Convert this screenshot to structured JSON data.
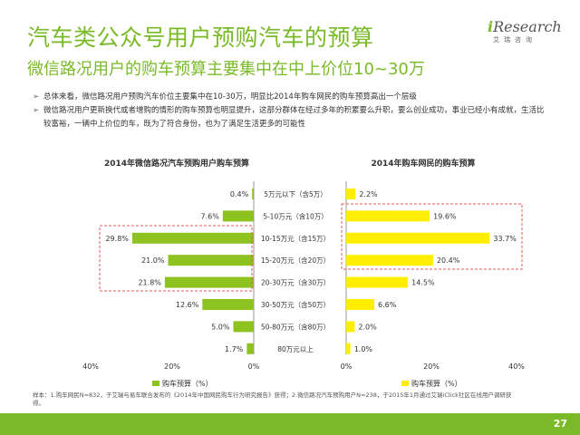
{
  "header": {
    "title": "汽车类公众号用户预购汽车的预算",
    "subtitle": "微信路况用户的购车预算主要集中在中上价位10~30万"
  },
  "logo": {
    "brand_i": "i",
    "brand_rest": "Research",
    "tagline": "艾瑞咨询"
  },
  "bullets": [
    {
      "mark": "➢",
      "text": "总体来看，微信路况用户预购汽车价位主要集中在10-30万，明显比2014年购车网民的购车预算高出一个层级"
    },
    {
      "mark": "➢",
      "text": "微信路况用户更新换代或者增购的情形的购车预算也明显提升，这部分群体在经过多年的积累要么升职，要么创业成功，事业已经小有成就，生活比较富裕，一辆中上价位的车，既为了符合身份，也为了满足生活更多的可能性"
    }
  ],
  "chart_data": [
    {
      "type": "bar",
      "orientation": "horizontal",
      "direction": "right-to-left",
      "title": "2014年微信路况汽车预购用户购车预算",
      "categories": [
        "5万元以下（含5万）",
        "5-10万元（含10万）",
        "10-15万元（含15万）",
        "15-20万元（含20万）",
        "20-30万元（含30万）",
        "30-50万元（含50万）",
        "50-80万元（含80万）",
        "80万元以上"
      ],
      "series": [
        {
          "name": "购车预算（%）",
          "values": [
            0.4,
            7.6,
            29.8,
            21.0,
            21.8,
            12.6,
            5.0,
            1.7
          ]
        }
      ],
      "data_labels": [
        "0.4%",
        "7.6%",
        "29.8%",
        "21.0%",
        "21.8%",
        "12.6%",
        "5.0%",
        "1.7%"
      ],
      "xlim": [
        0,
        40
      ],
      "x_ticks": [
        "40%",
        "20%",
        "0%"
      ],
      "color": "#8dc21f",
      "highlight_categories": [
        2,
        3,
        4
      ],
      "legend": "bottom"
    },
    {
      "type": "bar",
      "orientation": "horizontal",
      "direction": "left-to-right",
      "title": "2014年购车网民的购车预算",
      "categories": [
        "5万元以下（含5万）",
        "5-10万元（含10万）",
        "10-15万元（含15万）",
        "15-20万元（含20万）",
        "20-30万元（含30万）",
        "30-50万元（含50万）",
        "50-80万元（含80万）",
        "80万元以上"
      ],
      "series": [
        {
          "name": "购车预算（%）",
          "values": [
            2.2,
            19.6,
            33.7,
            20.4,
            14.5,
            6.6,
            2.0,
            1.0
          ]
        }
      ],
      "data_labels": [
        "2.2%",
        "19.6%",
        "33.7%",
        "20.4%",
        "14.5%",
        "6.6%",
        "2.0%",
        "1.0%"
      ],
      "xlim": [
        0,
        40
      ],
      "x_ticks": [
        "0%",
        "20%",
        "40%"
      ],
      "color": "#ffee00",
      "highlight_categories": [
        1,
        2,
        3
      ],
      "legend": "bottom"
    }
  ],
  "footnote": "样本：1.购车网民N=832，于艾瑞与易车联合发布的《2014年中国网民购车行为研究报告》获得；2.微信路况汽车预购用户N=238，于2015年1月通过艾瑞iClick社区在线用户调研获得。",
  "footer": {
    "page_number": "27",
    "color": "#7aba28"
  }
}
